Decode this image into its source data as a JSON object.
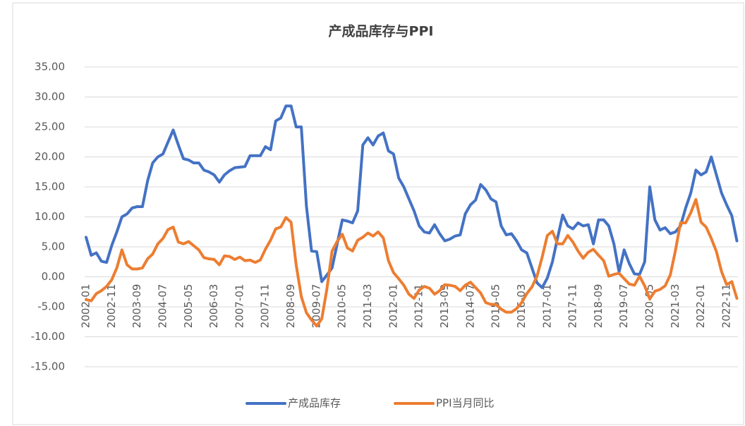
{
  "chart_data": {
    "type": "line",
    "title": "产成品库存与PPI",
    "categories": [
      "2002-01",
      null,
      null,
      null,
      null,
      "2002-11",
      null,
      null,
      null,
      null,
      "2003-09",
      null,
      null,
      null,
      null,
      "2004-07",
      null,
      null,
      null,
      null,
      "2005-05",
      null,
      null,
      null,
      null,
      "2006-03",
      null,
      null,
      null,
      null,
      "2007-01",
      null,
      null,
      null,
      null,
      "2007-11",
      null,
      null,
      null,
      null,
      "2008-09",
      null,
      null,
      null,
      null,
      "2009-07",
      null,
      null,
      null,
      null,
      "2010-05",
      null,
      null,
      null,
      null,
      "2011-03",
      null,
      null,
      null,
      null,
      "2012-01",
      null,
      null,
      null,
      null,
      "2012-11",
      null,
      null,
      null,
      null,
      "2013-09",
      null,
      null,
      null,
      null,
      "2014-07",
      null,
      null,
      null,
      null,
      "2015-05",
      null,
      null,
      null,
      null,
      "2016-03",
      null,
      null,
      null,
      null,
      "2017-01",
      null,
      null,
      null,
      null,
      "2017-11",
      null,
      null,
      null,
      null,
      "2018-09",
      null,
      null,
      null,
      null,
      "2019-07",
      null,
      null,
      null,
      null,
      "2020-05",
      null,
      null,
      null,
      null,
      "2021-03",
      null,
      null,
      null,
      null,
      "2022-01",
      null,
      null,
      null,
      null,
      "2022-11",
      null,
      null
    ],
    "series": [
      {
        "name": "产成品库存",
        "color": "#4472c4",
        "values": [
          6.6,
          3.6,
          4.0,
          2.6,
          2.4,
          5.2,
          7.5,
          10,
          10.5,
          11.5,
          11.7,
          11.7,
          16,
          19,
          20,
          20.5,
          22.5,
          24.5,
          22,
          19.7,
          19.5,
          19,
          19,
          17.8,
          17.5,
          17,
          15.8,
          17,
          17.7,
          18.2,
          18.3,
          18.4,
          20.2,
          20.2,
          20.2,
          21.7,
          21.2,
          26,
          26.5,
          28.5,
          28.5,
          25,
          25,
          11.7,
          4.3,
          4.2,
          -0.8,
          0.3,
          1.5,
          5.5,
          9.5,
          9.3,
          9.0,
          11,
          22,
          23.2,
          22,
          23.5,
          24,
          21,
          20.5,
          16.5,
          15,
          13,
          11,
          8.5,
          7.5,
          7.3,
          8.7,
          7.2,
          6,
          6.3,
          6.8,
          7.0,
          10.5,
          12,
          12.8,
          15.4,
          14.5,
          13,
          12.5,
          8.5,
          7,
          7.2,
          6,
          4.5,
          4,
          1.5,
          -1,
          -1.8,
          -0.2,
          2.5,
          6.5,
          10.3,
          8.5,
          8.0,
          9.0,
          8.5,
          8.7,
          5.5,
          9.5,
          9.5,
          8.5,
          5.5,
          0.8,
          4.5,
          2.2,
          0.5,
          0.4,
          2.5,
          15,
          9.5,
          7.8,
          8.2,
          7.2,
          7.5,
          8.5,
          11.5,
          14,
          17.8,
          17,
          17.5,
          20,
          17,
          14,
          12,
          10.2,
          6
        ]
      },
      {
        "name": "PPI当月同比",
        "color": "#ed7d31",
        "values": [
          -3.8,
          -4.0,
          -2.8,
          -2.3,
          -1.6,
          -0.5,
          1.5,
          4.5,
          2.0,
          1.3,
          1.3,
          1.5,
          3.0,
          3.8,
          5.5,
          6.4,
          7.9,
          8.3,
          5.8,
          5.5,
          5.9,
          5.2,
          4.5,
          3.2,
          3.0,
          2.9,
          2.0,
          3.5,
          3.4,
          2.9,
          3.3,
          2.7,
          2.8,
          2.4,
          2.8,
          4.6,
          6.1,
          8.0,
          8.3,
          9.9,
          9.1,
          2.0,
          -3.3,
          -6.0,
          -7.2,
          -8.2,
          -7.0,
          -2.0,
          4.3,
          5.9,
          7.1,
          4.8,
          4.3,
          6.1,
          6.6,
          7.3,
          6.8,
          7.5,
          6.5,
          2.7,
          0.7,
          -0.3,
          -1.4,
          -2.9,
          -3.6,
          -2.2,
          -1.6,
          -1.9,
          -2.9,
          -2.3,
          -1.3,
          -1.4,
          -1.6,
          -2.3,
          -1.4,
          -0.9,
          -1.8,
          -2.7,
          -4.3,
          -4.6,
          -4.6,
          -5.4,
          -5.9,
          -5.9,
          -5.3,
          -4.3,
          -2.8,
          -1.7,
          0.1,
          3.3,
          6.9,
          7.6,
          5.5,
          5.5,
          6.9,
          5.8,
          4.3,
          3.1,
          4.1,
          4.6,
          3.6,
          2.7,
          0.1,
          0.4,
          0.6,
          -0.3,
          -1.2,
          -1.4,
          0.1,
          -1.5,
          -3.7,
          -2.4,
          -2.1,
          -1.5,
          0.3,
          4.4,
          9.0,
          9.0,
          10.7,
          12.9,
          9.1,
          8.3,
          6.4,
          4.2,
          0.9,
          -1.3,
          -0.8,
          -3.6
        ]
      }
    ],
    "ylim": [
      -15,
      35
    ],
    "yticks": [
      {
        "value": -15,
        "label": "-15.00"
      },
      {
        "value": -10,
        "label": "-10.00"
      },
      {
        "value": -5,
        "label": "-5.00"
      },
      {
        "value": 0,
        "label": "0.00"
      },
      {
        "value": 5,
        "label": "5.00"
      },
      {
        "value": 10,
        "label": "10.00"
      },
      {
        "value": 15,
        "label": "15.00"
      },
      {
        "value": 20,
        "label": "20.00"
      },
      {
        "value": 25,
        "label": "25.00"
      },
      {
        "value": 30,
        "label": "30.00"
      },
      {
        "value": 35,
        "label": "35.00"
      }
    ],
    "grid": true,
    "legend": "bottom"
  }
}
